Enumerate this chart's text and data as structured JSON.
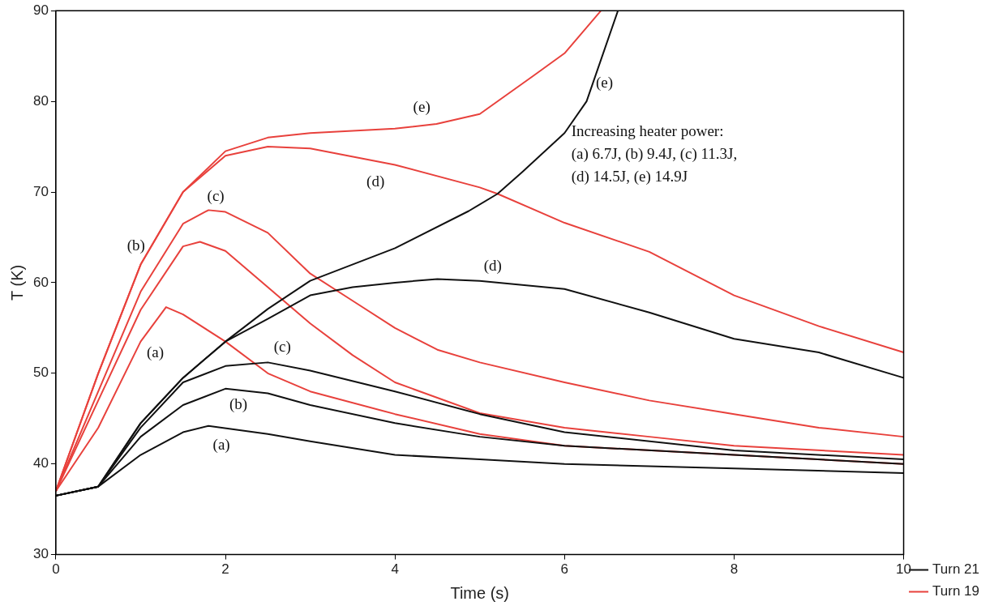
{
  "chart_data": {
    "type": "line",
    "xlabel": "Time (s)",
    "ylabel": "T (K)",
    "xlim": [
      0,
      10
    ],
    "xticks": [
      0,
      2,
      4,
      6,
      8,
      10
    ],
    "ylim": [
      30,
      90
    ],
    "yticks": [
      30,
      40,
      50,
      60,
      70,
      80,
      90
    ],
    "grid": false,
    "legend": "right",
    "marker": "none",
    "line_style": "solid",
    "series": [
      {
        "name": "Turn 21",
        "color": "#111111",
        "x": [
          0,
          0.5,
          1,
          1.5,
          1.8,
          2.5,
          3,
          4,
          5,
          6,
          8,
          10
        ],
        "values": [
          36.5,
          37.5,
          41,
          43.5,
          44.2,
          43.3,
          42.5,
          41,
          40.5,
          40,
          39.5,
          39
        ]
      },
      {
        "color": "#111111",
        "x": [
          0,
          0.5,
          1,
          1.5,
          2,
          2.5,
          3,
          4,
          5,
          6,
          8,
          10
        ],
        "values": [
          36.5,
          37.5,
          43,
          46.5,
          48.3,
          47.8,
          46.5,
          44.5,
          43,
          42,
          41,
          40
        ]
      },
      {
        "color": "#111111",
        "x": [
          0,
          0.5,
          1,
          1.5,
          2,
          2.5,
          3,
          4,
          5,
          6,
          8,
          10
        ],
        "values": [
          36.5,
          37.5,
          44,
          49,
          50.8,
          51.2,
          50.3,
          48,
          45.5,
          43.5,
          41.5,
          40.5
        ]
      },
      {
        "color": "#111111",
        "x": [
          0,
          0.5,
          1,
          1.5,
          2,
          2.5,
          3,
          3.5,
          4,
          4.5,
          5,
          6,
          7,
          8,
          9,
          10
        ],
        "values": [
          36.5,
          37.5,
          44.5,
          49.5,
          53.5,
          56,
          58.6,
          59.5,
          60,
          60.4,
          60.2,
          59.3,
          56.7,
          53.8,
          52.3,
          49.5
        ]
      },
      {
        "color": "#111111",
        "x": [
          0,
          0.5,
          1,
          1.5,
          2,
          2.5,
          3,
          4,
          4.87,
          5.21,
          5.5,
          6,
          6.26,
          6.63
        ],
        "values": [
          36.5,
          37.5,
          44.5,
          49.5,
          53.5,
          57.1,
          60.2,
          63.8,
          67.9,
          69.8,
          72.2,
          76.5,
          80,
          90
        ]
      },
      {
        "name": "Turn 19",
        "color": "#e8413c",
        "x": [
          0,
          0.5,
          1,
          1.3,
          1.5,
          2,
          2.5,
          3,
          4,
          5,
          6,
          8,
          10
        ],
        "values": [
          37,
          44,
          53.5,
          57.3,
          56.5,
          53.5,
          50,
          48,
          45.5,
          43.3,
          42,
          41,
          40
        ]
      },
      {
        "color": "#e8413c",
        "x": [
          0,
          0.5,
          1,
          1.5,
          1.7,
          2,
          2.5,
          3,
          3.5,
          4,
          5,
          6,
          7,
          8,
          10
        ],
        "values": [
          37,
          47,
          57,
          64,
          64.5,
          63.5,
          59.5,
          55.5,
          52,
          49,
          45.6,
          44,
          43,
          42,
          41
        ]
      },
      {
        "color": "#e8413c",
        "x": [
          0,
          0.5,
          1,
          1.5,
          1.8,
          2,
          2.5,
          3,
          3.5,
          4,
          4.5,
          5,
          6,
          7,
          8,
          9,
          10
        ],
        "values": [
          37,
          48,
          59,
          66.5,
          68,
          67.8,
          65.5,
          61,
          58,
          55,
          52.6,
          51.2,
          49,
          47,
          45.5,
          44,
          43
        ]
      },
      {
        "color": "#e8413c",
        "x": [
          0,
          0.5,
          1,
          1.5,
          2,
          2.5,
          3,
          4,
          5,
          5.21,
          6,
          7,
          8,
          9,
          10
        ],
        "values": [
          37,
          50,
          62,
          70,
          74,
          75,
          74.8,
          73,
          70.5,
          69.8,
          66.6,
          63.4,
          58.6,
          55.2,
          52.3
        ]
      },
      {
        "color": "#e8413c",
        "x": [
          0,
          0.5,
          1,
          1.5,
          2,
          2.5,
          3,
          4,
          4.49,
          5,
          5.63,
          6,
          6.43
        ],
        "values": [
          37,
          50,
          62,
          70,
          74.5,
          76,
          76.5,
          77,
          77.5,
          78.6,
          82.8,
          85.3,
          90
        ]
      }
    ],
    "annotations": [
      {
        "text": "(a)",
        "x": 1.8,
        "y": 44.2
      },
      {
        "text": "(b)",
        "x": 2,
        "y": 48.3
      },
      {
        "text": "(c)",
        "x": 2.5,
        "y": 51.2
      },
      {
        "text": "(d)",
        "x": 5,
        "y": 60.2
      },
      {
        "text": "(e)",
        "x": 6.26,
        "y": 80
      },
      {
        "text": "(a)",
        "x": 1,
        "y": 53.5
      },
      {
        "text": "(b)",
        "x": 1.5,
        "y": 64
      },
      {
        "text": "(c)",
        "x": 1.8,
        "y": 68
      },
      {
        "text": "(d)",
        "x": 4,
        "y": 73
      },
      {
        "text": "(e)",
        "x": 4,
        "y": 77
      },
      "Increasing heater power:\n(a) 6.7J, (b) 9.4J, (c) 11.3J,\n(d) 14.5J, (e) 14.9J"
    ]
  }
}
